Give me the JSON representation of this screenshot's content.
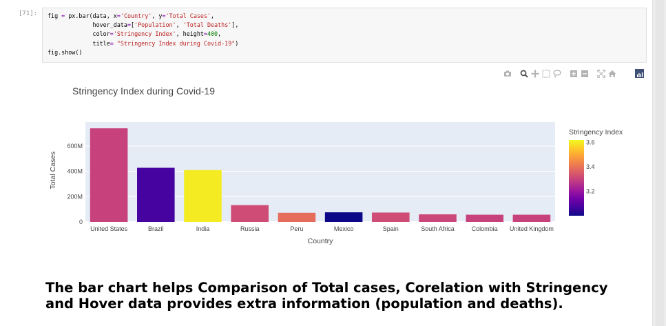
{
  "cell": {
    "prompt": "[71]:",
    "code_lines": [
      [
        {
          "t": "fig ",
          "c": ""
        },
        {
          "t": "=",
          "c": "op"
        },
        {
          "t": " px.bar(data, x",
          "c": ""
        },
        {
          "t": "=",
          "c": "op"
        },
        {
          "t": "'Country'",
          "c": "str"
        },
        {
          "t": ", y",
          "c": ""
        },
        {
          "t": "=",
          "c": "op"
        },
        {
          "t": "'Total Cases'",
          "c": "str"
        },
        {
          "t": ",",
          "c": ""
        }
      ],
      [
        {
          "t": "             hover_data",
          "c": ""
        },
        {
          "t": "=",
          "c": "op"
        },
        {
          "t": "[",
          "c": ""
        },
        {
          "t": "'Population'",
          "c": "str"
        },
        {
          "t": ", ",
          "c": ""
        },
        {
          "t": "'Total Deaths'",
          "c": "str"
        },
        {
          "t": "],",
          "c": ""
        }
      ],
      [
        {
          "t": "             color",
          "c": ""
        },
        {
          "t": "=",
          "c": "op"
        },
        {
          "t": "'Stringency Index'",
          "c": "str"
        },
        {
          "t": ", height",
          "c": ""
        },
        {
          "t": "=",
          "c": "op"
        },
        {
          "t": "400",
          "c": "num"
        },
        {
          "t": ",",
          "c": ""
        }
      ],
      [
        {
          "t": "             title",
          "c": ""
        },
        {
          "t": "=",
          "c": "op"
        },
        {
          "t": " ",
          "c": ""
        },
        {
          "t": "\"Stringency Index during Covid-19\"",
          "c": "str"
        },
        {
          "t": ")",
          "c": ""
        }
      ],
      [
        {
          "t": "fig.show()",
          "c": ""
        }
      ]
    ]
  },
  "modebar": {
    "icons": [
      "camera-icon",
      "zoom-icon",
      "pan-icon",
      "box-select-icon",
      "lasso-select-icon",
      "zoom-in-icon",
      "zoom-out-icon",
      "autoscale-icon",
      "reset-axes-icon"
    ],
    "logo": "plotly-logo-icon",
    "colors": {
      "icon": "#b3b3b3",
      "logo_bg": "#3f4f75"
    }
  },
  "chart_data": {
    "type": "bar",
    "title": "Stringency Index during Covid-19",
    "xlabel": "Country",
    "ylabel": "Total Cases",
    "categories": [
      "United States",
      "Brazil",
      "India",
      "Russia",
      "Peru",
      "Mexico",
      "Spain",
      "South Africa",
      "Colombia",
      "United Kingdom"
    ],
    "values": [
      740000000,
      428000000,
      410000000,
      133000000,
      72000000,
      76000000,
      74000000,
      60000000,
      57000000,
      57000000
    ],
    "color_values": [
      3.3,
      3.07,
      3.6,
      3.32,
      3.39,
      3.0,
      3.32,
      3.31,
      3.3,
      3.3
    ],
    "ylim": [
      0,
      790000000
    ],
    "yticks": [
      {
        "value": 0,
        "label": "0"
      },
      {
        "value": 200000000,
        "label": "200M"
      },
      {
        "value": 400000000,
        "label": "400M"
      },
      {
        "value": 600000000,
        "label": "600M"
      }
    ],
    "colorbar": {
      "title": "Stringency Index",
      "range": [
        3.0,
        3.62
      ],
      "ticks": [
        {
          "value": 3.2,
          "label": "3.2"
        },
        {
          "value": 3.4,
          "label": "3.4"
        },
        {
          "value": 3.6,
          "label": "3.6"
        }
      ],
      "colorscale": [
        "#0d0887",
        "#46039f",
        "#7201a8",
        "#9c179e",
        "#bd3786",
        "#d8576b",
        "#ed7953",
        "#fb9f3a",
        "#fdca26",
        "#f0f921"
      ]
    },
    "grid": true,
    "plot_bg": "#e5ecf6",
    "legend_position": "right"
  },
  "markdown": {
    "text": "The bar chart helps Comparison of Total cases, Corelation with Stringency and Hover data provides extra information (population and deaths)."
  }
}
